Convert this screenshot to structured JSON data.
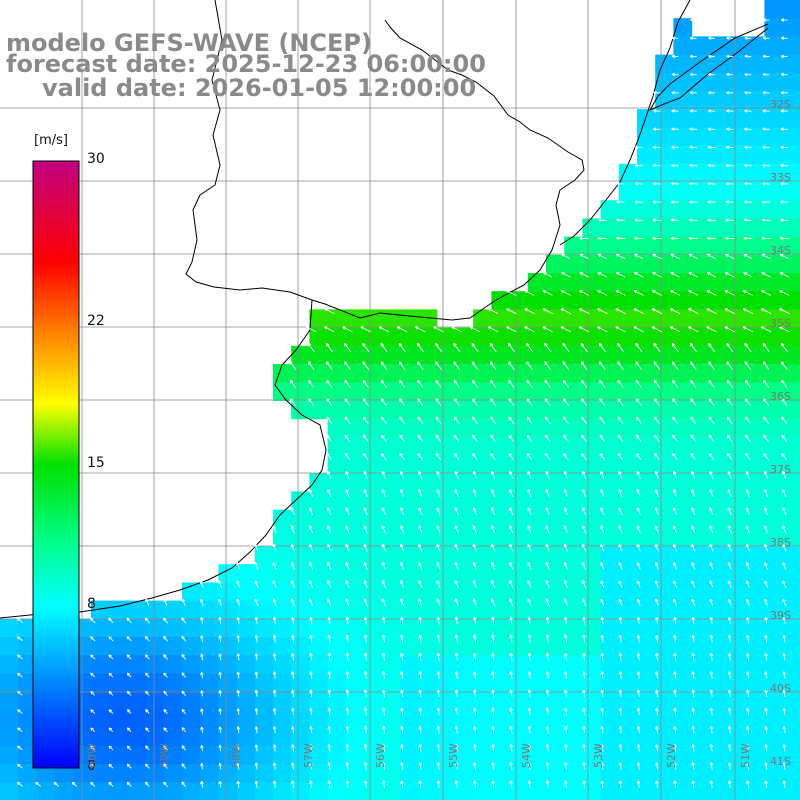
{
  "title": {
    "line1": "modelo GEFS-WAVE (NCEP)",
    "line2": "forecast date: 2025-12-23 06:00:00",
    "line3": "valid date: 2026-01-05 12:00:00"
  },
  "colorbar": {
    "unit": "[m/s]",
    "range": [
      0,
      30
    ],
    "ticks": [
      {
        "value": 30,
        "label": "30"
      },
      {
        "value": 22,
        "label": "22"
      },
      {
        "value": 15,
        "label": "15"
      },
      {
        "value": 8,
        "label": "8"
      },
      {
        "value": 0,
        "label": "0"
      }
    ],
    "colors": [
      "#0000ff",
      "#0060ff",
      "#00c0ff",
      "#00ffff",
      "#00ff70",
      "#00e000",
      "#80f000",
      "#ffff00",
      "#ffa000",
      "#ff5000",
      "#ff0000",
      "#e00060",
      "#c00080"
    ]
  },
  "map": {
    "lon_range": [
      -61,
      -50
    ],
    "lat_range": [
      -42,
      -31
    ],
    "grid_lines": true,
    "lon_labels": [
      "60W",
      "59W",
      "58W",
      "57W",
      "56W",
      "55W",
      "54W",
      "53W",
      "52W",
      "51W"
    ],
    "lat_labels": [
      "32S",
      "33S",
      "34S",
      "35S",
      "36S",
      "37S",
      "38S",
      "39S",
      "40S",
      "41S"
    ],
    "land_color": "#ffffff",
    "arrow_color": "#ffffff",
    "coast_color": "#000000"
  }
}
